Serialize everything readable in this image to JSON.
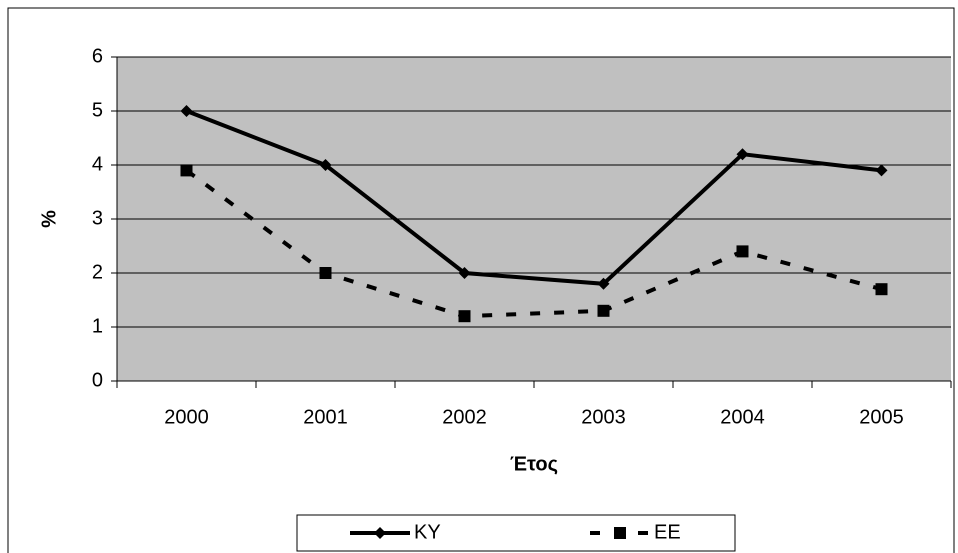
{
  "chart_data": {
    "type": "line",
    "categories": [
      "2000",
      "2001",
      "2002",
      "2003",
      "2004",
      "2005"
    ],
    "series": [
      {
        "name": "ΚΥ",
        "color": "#000000",
        "line_style": "solid",
        "marker": "diamond",
        "values": [
          5,
          4,
          2,
          1.8,
          4.2,
          3.9
        ]
      },
      {
        "name": "ΕΕ",
        "color": "#000000",
        "line_style": "dashed",
        "marker": "square",
        "values": [
          3.9,
          2.0,
          1.2,
          1.3,
          2.4,
          1.7
        ]
      }
    ],
    "x_label": "Έτος",
    "y_label": "%",
    "ylim": [
      0,
      6
    ],
    "yticks": [
      0,
      1,
      2,
      3,
      4,
      5,
      6
    ],
    "grid": true,
    "legend": "bottom"
  }
}
